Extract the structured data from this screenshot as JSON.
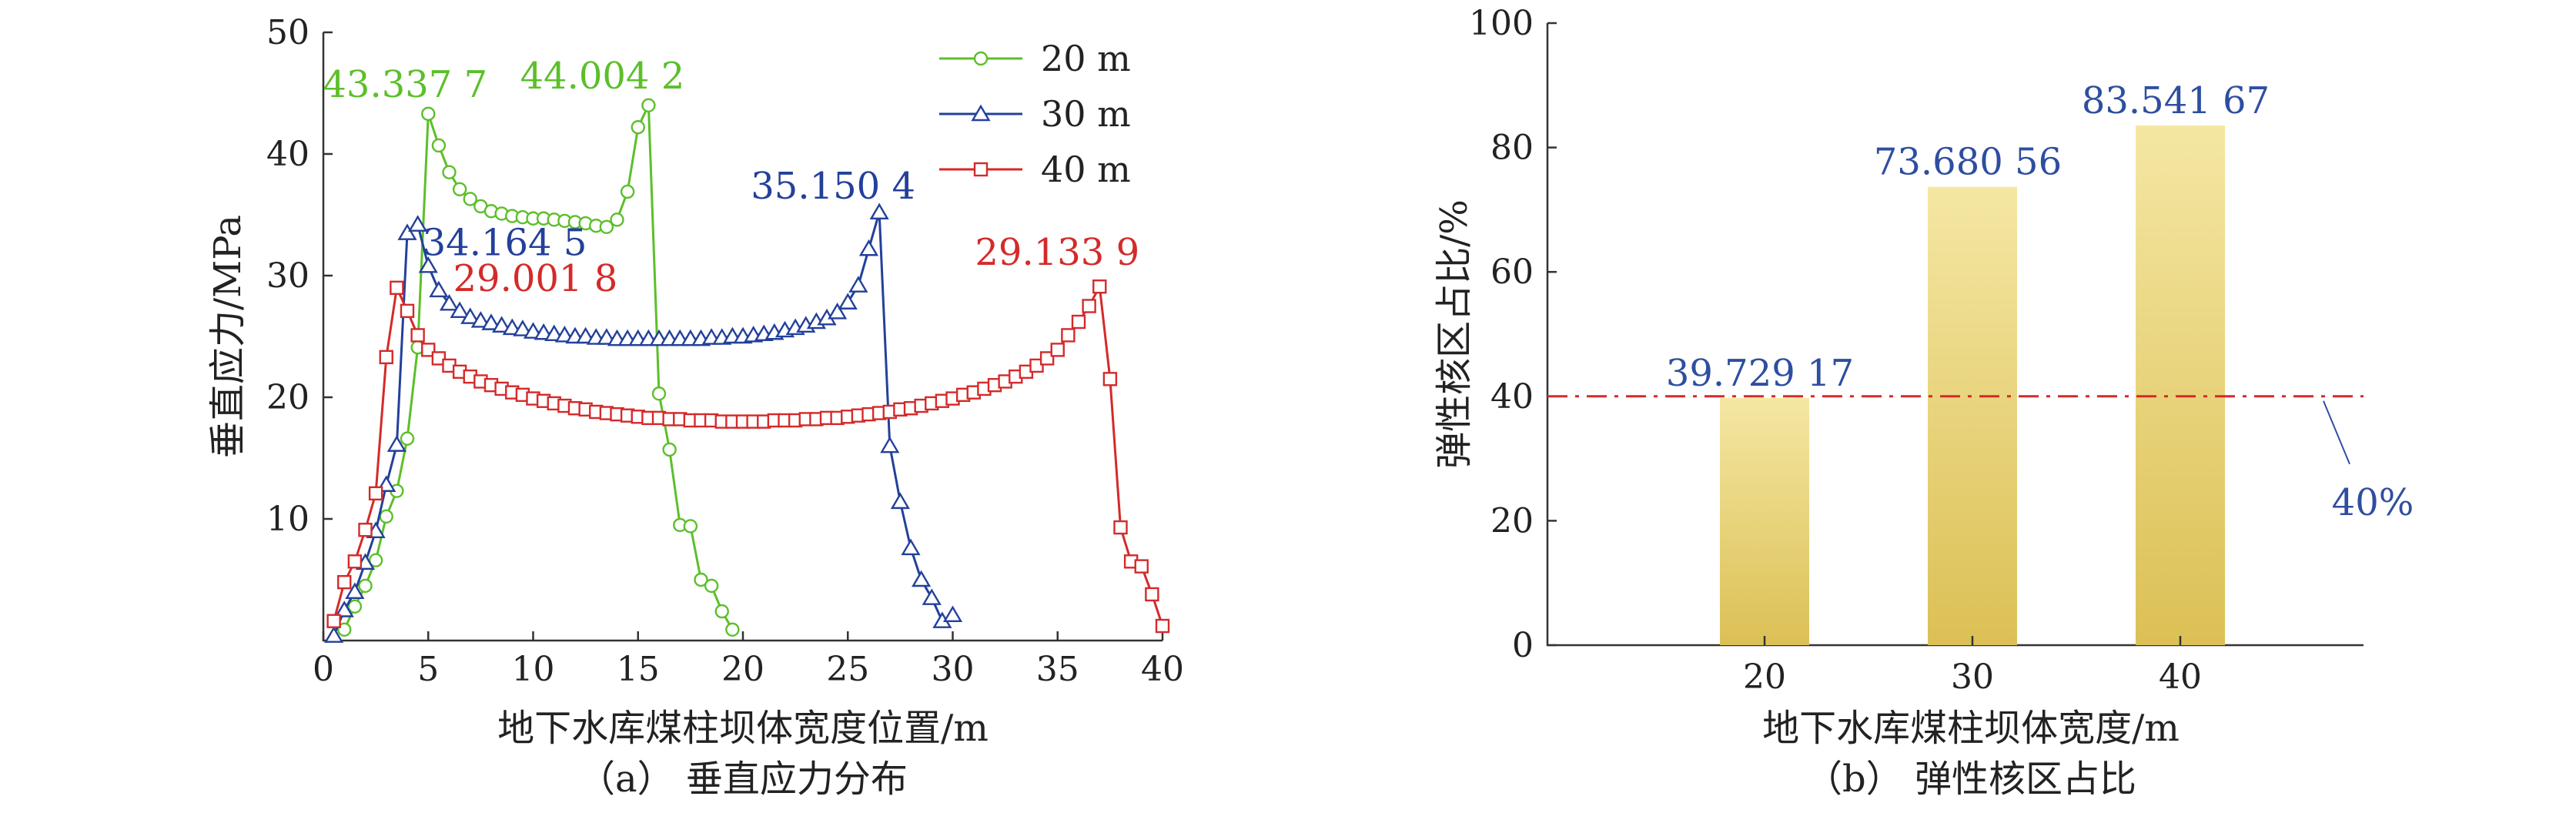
{
  "colors": {
    "s20": "#5cbf2a",
    "s30": "#23409a",
    "s40": "#d42a2a",
    "bar_top": "#f4e7a3",
    "bar_bottom": "#dcc055",
    "ref_line": "#d42a2a",
    "bar_label": "#2e4ea0"
  },
  "chart_data": [
    {
      "type": "line",
      "caption": "（a） 垂直应力分布",
      "xlabel": "地下水库煤柱坝体宽度位置/m",
      "ylabel": "垂直应力/MPa",
      "xlim": [
        0,
        40
      ],
      "ylim": [
        0,
        50
      ],
      "xticks": [
        0,
        5,
        10,
        15,
        20,
        25,
        30,
        35,
        40
      ],
      "yticks": [
        10,
        20,
        30,
        40,
        50
      ],
      "legend_position": "top-right",
      "series": [
        {
          "name": "20 m",
          "marker": "circle",
          "color_key": "s20",
          "points": [
            [
              1,
              0.9
            ],
            [
              1.5,
              2.8
            ],
            [
              2,
              4.5
            ],
            [
              2.5,
              6.6
            ],
            [
              3,
              10.2
            ],
            [
              3.5,
              12.3
            ],
            [
              4,
              16.6
            ],
            [
              4.5,
              24.1
            ],
            [
              5,
              43.3
            ],
            [
              5.5,
              40.7
            ],
            [
              6,
              38.5
            ],
            [
              6.5,
              37.1
            ],
            [
              7,
              36.3
            ],
            [
              7.5,
              35.7
            ],
            [
              8,
              35.3
            ],
            [
              8.5,
              35.1
            ],
            [
              9,
              34.9
            ],
            [
              9.5,
              34.8
            ],
            [
              10,
              34.7
            ],
            [
              10.5,
              34.7
            ],
            [
              11,
              34.6
            ],
            [
              11.5,
              34.5
            ],
            [
              12,
              34.4
            ],
            [
              12.5,
              34.3
            ],
            [
              13,
              34.1
            ],
            [
              13.5,
              34
            ],
            [
              14,
              34.6
            ],
            [
              14.5,
              36.9
            ],
            [
              15,
              42.2
            ],
            [
              15.5,
              44
            ],
            [
              16,
              20.3
            ],
            [
              16.5,
              15.7
            ],
            [
              17,
              9.5
            ],
            [
              17.5,
              9.4
            ],
            [
              18,
              5
            ],
            [
              18.5,
              4.5
            ],
            [
              19,
              2.4
            ],
            [
              19.5,
              0.9
            ]
          ]
        },
        {
          "name": "30 m",
          "marker": "triangle",
          "color_key": "s30",
          "points": [
            [
              0.5,
              0.4
            ],
            [
              1,
              2.5
            ],
            [
              1.5,
              4
            ],
            [
              2,
              6.4
            ],
            [
              2.5,
              9
            ],
            [
              3,
              12.8
            ],
            [
              3.5,
              16.1
            ],
            [
              4,
              33.5
            ],
            [
              4.5,
              34.2
            ],
            [
              5,
              30.8
            ],
            [
              5.5,
              28.8
            ],
            [
              6,
              27.7
            ],
            [
              6.5,
              27.1
            ],
            [
              7,
              26.6
            ],
            [
              7.5,
              26.3
            ],
            [
              8,
              26.1
            ],
            [
              8.5,
              25.9
            ],
            [
              9,
              25.7
            ],
            [
              9.5,
              25.6
            ],
            [
              10,
              25.4
            ],
            [
              10.5,
              25.3
            ],
            [
              11,
              25.2
            ],
            [
              11.5,
              25.1
            ],
            [
              12,
              25
            ],
            [
              12.5,
              25
            ],
            [
              13,
              24.9
            ],
            [
              13.5,
              24.9
            ],
            [
              14,
              24.8
            ],
            [
              14.5,
              24.8
            ],
            [
              15,
              24.8
            ],
            [
              15.5,
              24.8
            ],
            [
              16,
              24.8
            ],
            [
              16.5,
              24.8
            ],
            [
              17,
              24.8
            ],
            [
              17.5,
              24.8
            ],
            [
              18,
              24.8
            ],
            [
              18.5,
              24.9
            ],
            [
              19,
              24.9
            ],
            [
              19.5,
              25
            ],
            [
              20,
              25
            ],
            [
              20.5,
              25.1
            ],
            [
              21,
              25.2
            ],
            [
              21.5,
              25.3
            ],
            [
              22,
              25.5
            ],
            [
              22.5,
              25.7
            ],
            [
              23,
              25.9
            ],
            [
              23.5,
              26.2
            ],
            [
              24,
              26.5
            ],
            [
              24.5,
              27
            ],
            [
              25,
              27.8
            ],
            [
              25.5,
              29.2
            ],
            [
              26,
              32.2
            ],
            [
              26.5,
              35.2
            ],
            [
              27,
              16
            ],
            [
              27.5,
              11.4
            ],
            [
              28,
              7.6
            ],
            [
              28.5,
              5
            ],
            [
              29,
              3.5
            ],
            [
              29.5,
              1.6
            ],
            [
              30,
              2.1
            ]
          ]
        },
        {
          "name": "40 m",
          "marker": "square",
          "color_key": "s40",
          "points": [
            [
              0.5,
              1.6
            ],
            [
              1,
              4.8
            ],
            [
              1.5,
              6.5
            ],
            [
              2,
              9.1
            ],
            [
              2.5,
              12.1
            ],
            [
              3,
              23.3
            ],
            [
              3.5,
              29
            ],
            [
              4,
              27.1
            ],
            [
              4.5,
              25.1
            ],
            [
              5,
              23.9
            ],
            [
              5.5,
              23.2
            ],
            [
              6,
              22.6
            ],
            [
              6.5,
              22.1
            ],
            [
              7,
              21.7
            ],
            [
              7.5,
              21.3
            ],
            [
              8,
              21
            ],
            [
              8.5,
              20.7
            ],
            [
              9,
              20.4
            ],
            [
              9.5,
              20.2
            ],
            [
              10,
              19.9
            ],
            [
              10.5,
              19.7
            ],
            [
              11,
              19.5
            ],
            [
              11.5,
              19.3
            ],
            [
              12,
              19.1
            ],
            [
              12.5,
              19
            ],
            [
              13,
              18.8
            ],
            [
              13.5,
              18.7
            ],
            [
              14,
              18.6
            ],
            [
              14.5,
              18.5
            ],
            [
              15,
              18.4
            ],
            [
              15.5,
              18.3
            ],
            [
              16,
              18.3
            ],
            [
              16.5,
              18.2
            ],
            [
              17,
              18.2
            ],
            [
              17.5,
              18.1
            ],
            [
              18,
              18.1
            ],
            [
              18.5,
              18.1
            ],
            [
              19,
              18
            ],
            [
              19.5,
              18
            ],
            [
              20,
              18
            ],
            [
              20.5,
              18
            ],
            [
              21,
              18
            ],
            [
              21.5,
              18.1
            ],
            [
              22,
              18.1
            ],
            [
              22.5,
              18.1
            ],
            [
              23,
              18.2
            ],
            [
              23.5,
              18.2
            ],
            [
              24,
              18.3
            ],
            [
              24.5,
              18.3
            ],
            [
              25,
              18.4
            ],
            [
              25.5,
              18.5
            ],
            [
              26,
              18.6
            ],
            [
              26.5,
              18.7
            ],
            [
              27,
              18.8
            ],
            [
              27.5,
              19
            ],
            [
              28,
              19.1
            ],
            [
              28.5,
              19.3
            ],
            [
              29,
              19.5
            ],
            [
              29.5,
              19.7
            ],
            [
              30,
              19.9
            ],
            [
              30.5,
              20.2
            ],
            [
              31,
              20.4
            ],
            [
              31.5,
              20.7
            ],
            [
              32,
              21
            ],
            [
              32.5,
              21.3
            ],
            [
              33,
              21.7
            ],
            [
              33.5,
              22.1
            ],
            [
              34,
              22.6
            ],
            [
              34.5,
              23.2
            ],
            [
              35,
              23.9
            ],
            [
              35.5,
              25.1
            ],
            [
              36,
              26.2
            ],
            [
              36.5,
              27.5
            ],
            [
              37,
              29.1
            ],
            [
              37.5,
              21.5
            ],
            [
              38,
              9.3
            ],
            [
              38.5,
              6.5
            ],
            [
              39,
              6.1
            ],
            [
              39.5,
              3.8
            ],
            [
              40,
              1.2
            ]
          ]
        }
      ],
      "annotations": [
        {
          "text": "43.337 7",
          "x": 5,
          "y": 43.3,
          "color_key": "s20",
          "anchor": "right"
        },
        {
          "text": "44.004 2",
          "x": 15.5,
          "y": 44,
          "color_key": "s20",
          "anchor": "left"
        },
        {
          "text": "35.150 4",
          "x": 26.5,
          "y": 35.2,
          "color_key": "s30",
          "anchor": "right"
        },
        {
          "text": "34.164 5",
          "x": 4.5,
          "y": 34.2,
          "color_key": "s30",
          "anchor": "below-right"
        },
        {
          "text": "29.001 8",
          "x": 3.5,
          "y": 29,
          "color_key": "s40",
          "anchor": "far-right"
        },
        {
          "text": "29.133 9",
          "x": 37,
          "y": 29.1,
          "color_key": "s40",
          "anchor": "above"
        }
      ]
    },
    {
      "type": "bar",
      "caption": "（b） 弹性核区占比",
      "xlabel": "地下水库煤柱坝体宽度/m",
      "ylabel": "弹性核区占比/%",
      "categories": [
        "20",
        "30",
        "40"
      ],
      "values": [
        39.72917,
        73.68056,
        83.54167
      ],
      "value_labels": [
        "39.729 17",
        "73.680 56",
        "83.541 67"
      ],
      "ylim": [
        0,
        100
      ],
      "yticks": [
        0,
        20,
        40,
        60,
        80,
        100
      ],
      "reference_line": {
        "y": 40,
        "style": "dash-dot",
        "label": "40%"
      }
    }
  ]
}
